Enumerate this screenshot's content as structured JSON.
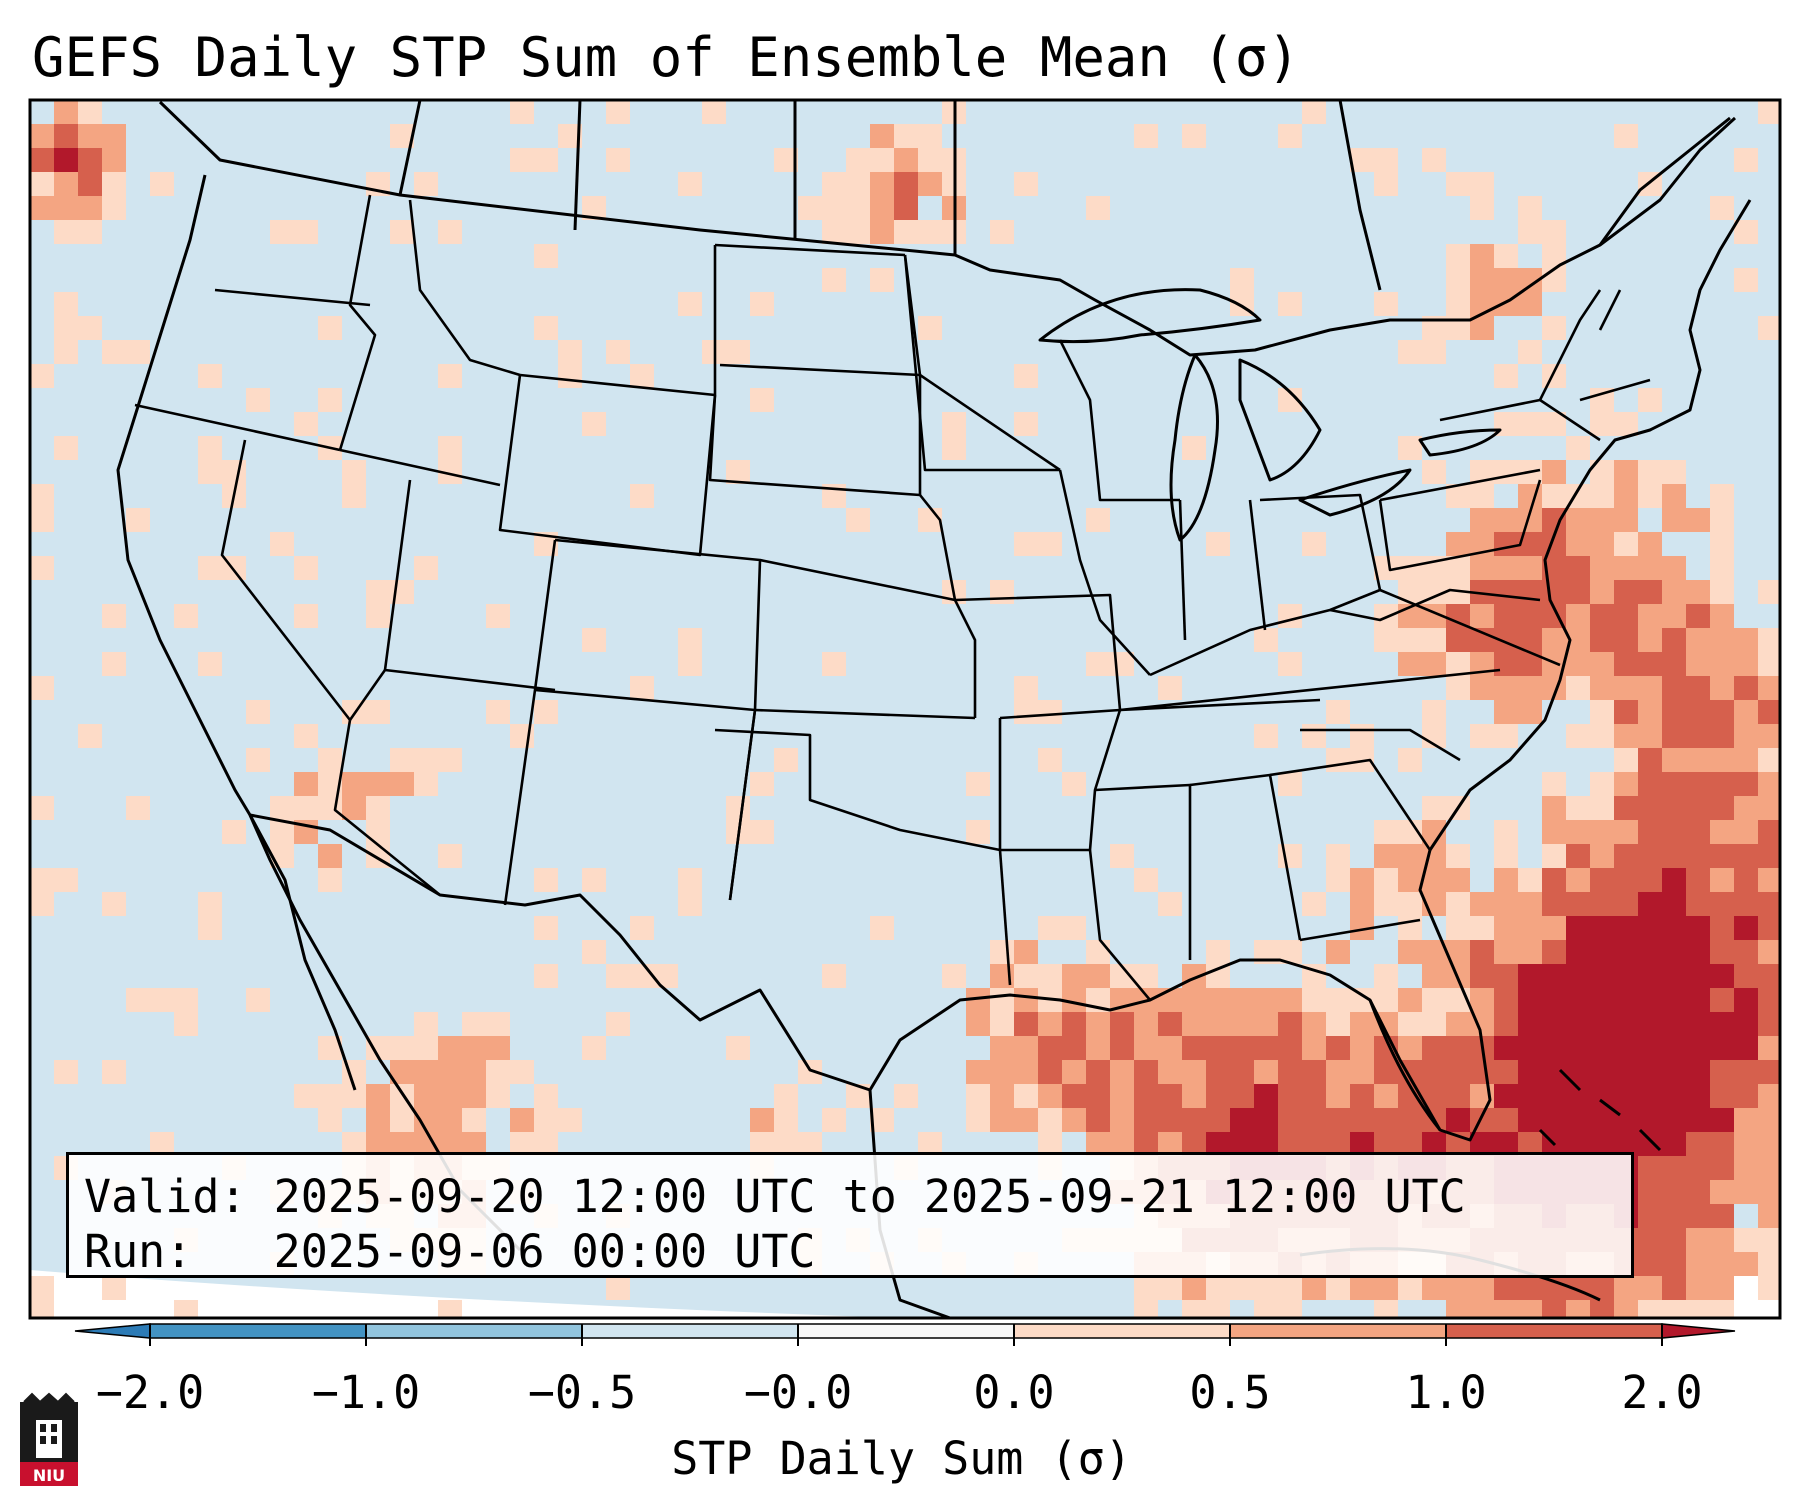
{
  "title": "GEFS Daily STP Sum of Ensemble Mean (σ)",
  "info": {
    "valid_label": "Valid:",
    "valid_value": "2025-09-20 12:00 UTC to 2025-09-21 12:00 UTC",
    "run_label": "Run:",
    "run_value": "2025-09-06 00:00 UTC"
  },
  "colorbar": {
    "label": "STP Daily Sum (σ)",
    "ticks": [
      "−2.0",
      "−1.0",
      "−0.5",
      "−0.0",
      "0.0",
      "0.5",
      "1.0",
      "2.0"
    ],
    "bins": [
      {
        "range": "< -2.0",
        "color": "#2c7bb6"
      },
      {
        "range": "-2.0 to -1.0",
        "color": "#4393c3"
      },
      {
        "range": "-1.0 to -0.5",
        "color": "#92c5de"
      },
      {
        "range": "-0.5 to -0.0",
        "color": "#d1e5f0"
      },
      {
        "range": "-0.0 to 0.0",
        "color": "#f7f7f7"
      },
      {
        "range": "0.0 to 0.5",
        "color": "#fddbc7"
      },
      {
        "range": "0.5 to 1.0",
        "color": "#f4a582"
      },
      {
        "range": "1.0 to 2.0",
        "color": "#d6604d"
      },
      {
        "range": "> 2.0",
        "color": "#b2182b"
      }
    ]
  },
  "map": {
    "region": "Contiguous United States and surrounding waters",
    "field": "STP daily sum standardized anomaly",
    "background_color": "#d1e5f0",
    "border_color": "#000000"
  },
  "logo": {
    "text": "NIU"
  }
}
